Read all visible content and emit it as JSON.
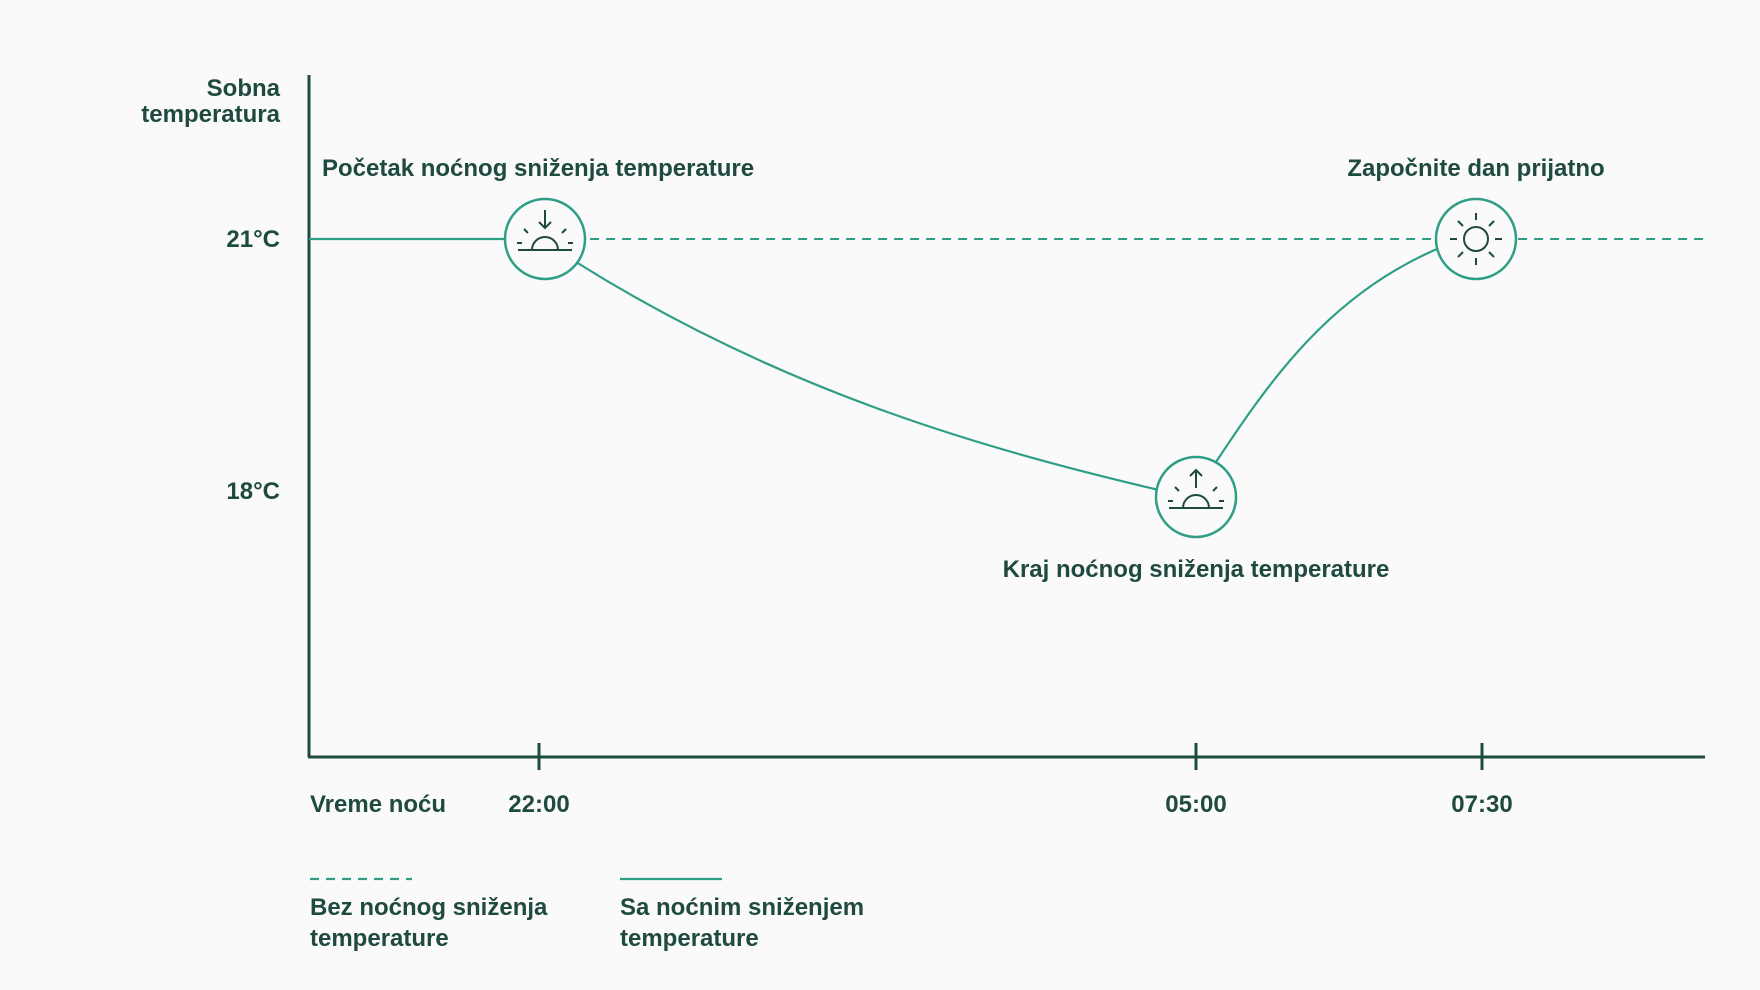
{
  "chart_data": {
    "type": "line",
    "ylabel": [
      "Sobna",
      "temperatura"
    ],
    "xlabel": "Vreme noću",
    "y_ticks": [
      "21°C",
      "18°C"
    ],
    "x_ticks": [
      "22:00",
      "05:00",
      "07:30"
    ],
    "series": [
      {
        "name": "Bez noćnog sniženja temperature",
        "style": "dashed",
        "points": [
          [
            "22:00",
            21
          ],
          [
            "07:30",
            21
          ]
        ]
      },
      {
        "name": "Sa noćnim sniženjem temperature",
        "style": "solid",
        "points": [
          [
            "22:00",
            21
          ],
          [
            "05:00",
            18
          ],
          [
            "07:30",
            21
          ]
        ]
      }
    ],
    "annotations": [
      {
        "text": "Početak noćnog sniženja temperature",
        "x": "22:00",
        "y": 21,
        "icon": "sunset-icon"
      },
      {
        "text": "Kraj noćnog sniženja temperature",
        "x": "05:00",
        "y": 18,
        "icon": "sunrise-icon"
      },
      {
        "text": "Započnite dan prijatno",
        "x": "07:30",
        "y": 21,
        "icon": "sun-icon"
      }
    ],
    "legend": {
      "placement": "bottom-left",
      "items": [
        {
          "lines": [
            "Bez noćnog sniženja",
            "temperature"
          ],
          "style": "dashed"
        },
        {
          "lines": [
            "Sa noćnim sniženjem",
            "temperature"
          ],
          "style": "solid"
        }
      ]
    },
    "grid": false
  },
  "colors": {
    "line": "#2e9e86",
    "axis": "#1f4a40",
    "text": "#1f4a40",
    "background": "#fafafa"
  }
}
